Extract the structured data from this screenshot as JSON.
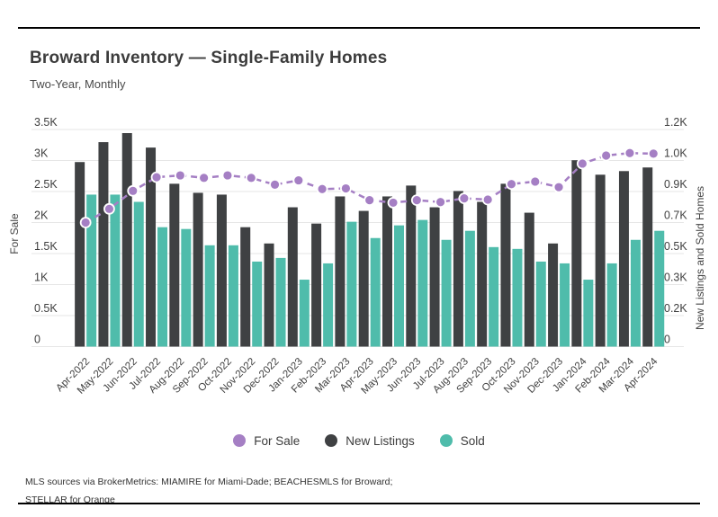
{
  "header": {
    "title": "Broward Inventory — Single-Family Homes",
    "subtitle": "Two-Year, Monthly"
  },
  "legend": {
    "items": [
      {
        "label": "For Sale",
        "color": "#a57fc4"
      },
      {
        "label": "New Listings",
        "color": "#3f4143"
      },
      {
        "label": "Sold",
        "color": "#4fbcab"
      }
    ]
  },
  "footer": {
    "line1": "MLS sources via BrokerMetrics: MIAMIRE for Miami-Dade; BEACHESMLS for Broward;",
    "line2": "STELLAR for Orange"
  },
  "chart_data": {
    "type": "bar",
    "subtype": "grouped-bars-with-line-overlay",
    "title": "Broward Inventory — Single-Family Homes",
    "subtitle": "Two-Year, Monthly",
    "categories": [
      "Apr-2022",
      "May-2022",
      "Jun-2022",
      "Jul-2022",
      "Aug-2022",
      "Sep-2022",
      "Oct-2022",
      "Nov-2022",
      "Dec-2022",
      "Jan-2023",
      "Feb-2023",
      "Mar-2023",
      "Apr-2023",
      "May-2023",
      "Jun-2023",
      "Jul-2023",
      "Aug-2023",
      "Sep-2023",
      "Oct-2023",
      "Nov-2023",
      "Dec-2023",
      "Jan-2024",
      "Feb-2024",
      "Mar-2024",
      "Apr-2024"
    ],
    "series": [
      {
        "name": "For Sale",
        "type": "line",
        "axis": "left",
        "color": "#a57fc4",
        "values": [
          2000,
          2220,
          2510,
          2730,
          2760,
          2720,
          2760,
          2720,
          2610,
          2680,
          2540,
          2550,
          2360,
          2320,
          2360,
          2330,
          2390,
          2370,
          2620,
          2660,
          2570,
          2950,
          3080,
          3120,
          3110
        ]
      },
      {
        "name": "New Listings",
        "type": "bar",
        "axis": "right",
        "color": "#3f4143",
        "values": [
          1020,
          1130,
          1180,
          1100,
          900,
          850,
          840,
          660,
          570,
          770,
          680,
          830,
          750,
          830,
          890,
          770,
          860,
          800,
          900,
          740,
          570,
          1030,
          950,
          970,
          990
        ]
      },
      {
        "name": "Sold",
        "type": "bar",
        "axis": "right",
        "color": "#4fbcab",
        "values": [
          840,
          840,
          800,
          660,
          650,
          560,
          560,
          470,
          490,
          370,
          460,
          690,
          600,
          670,
          700,
          590,
          640,
          550,
          540,
          470,
          460,
          370,
          460,
          590,
          640
        ]
      }
    ],
    "axes": {
      "left": {
        "label": "For Sale",
        "range": [
          0,
          3500
        ],
        "tick_labels_top_to_bottom": [
          "3.5K",
          "3K",
          "2.5K",
          "2K",
          "1.5K",
          "1K",
          "0.5K",
          "0"
        ]
      },
      "right": {
        "label": "New Listings and Sold Homes",
        "range": [
          0,
          1200
        ],
        "tick_labels_top_to_bottom": [
          "1.2K",
          "1.0K",
          "0.9K",
          "0.7K",
          "0.5K",
          "0.3K",
          "0.2K",
          "0"
        ]
      }
    },
    "grid": "horizontal",
    "gridline_color": "#e6e6e6",
    "line_style": "dashed-with-circle-markers",
    "legend_position": "bottom",
    "x_tick_rotation_deg": 45
  }
}
